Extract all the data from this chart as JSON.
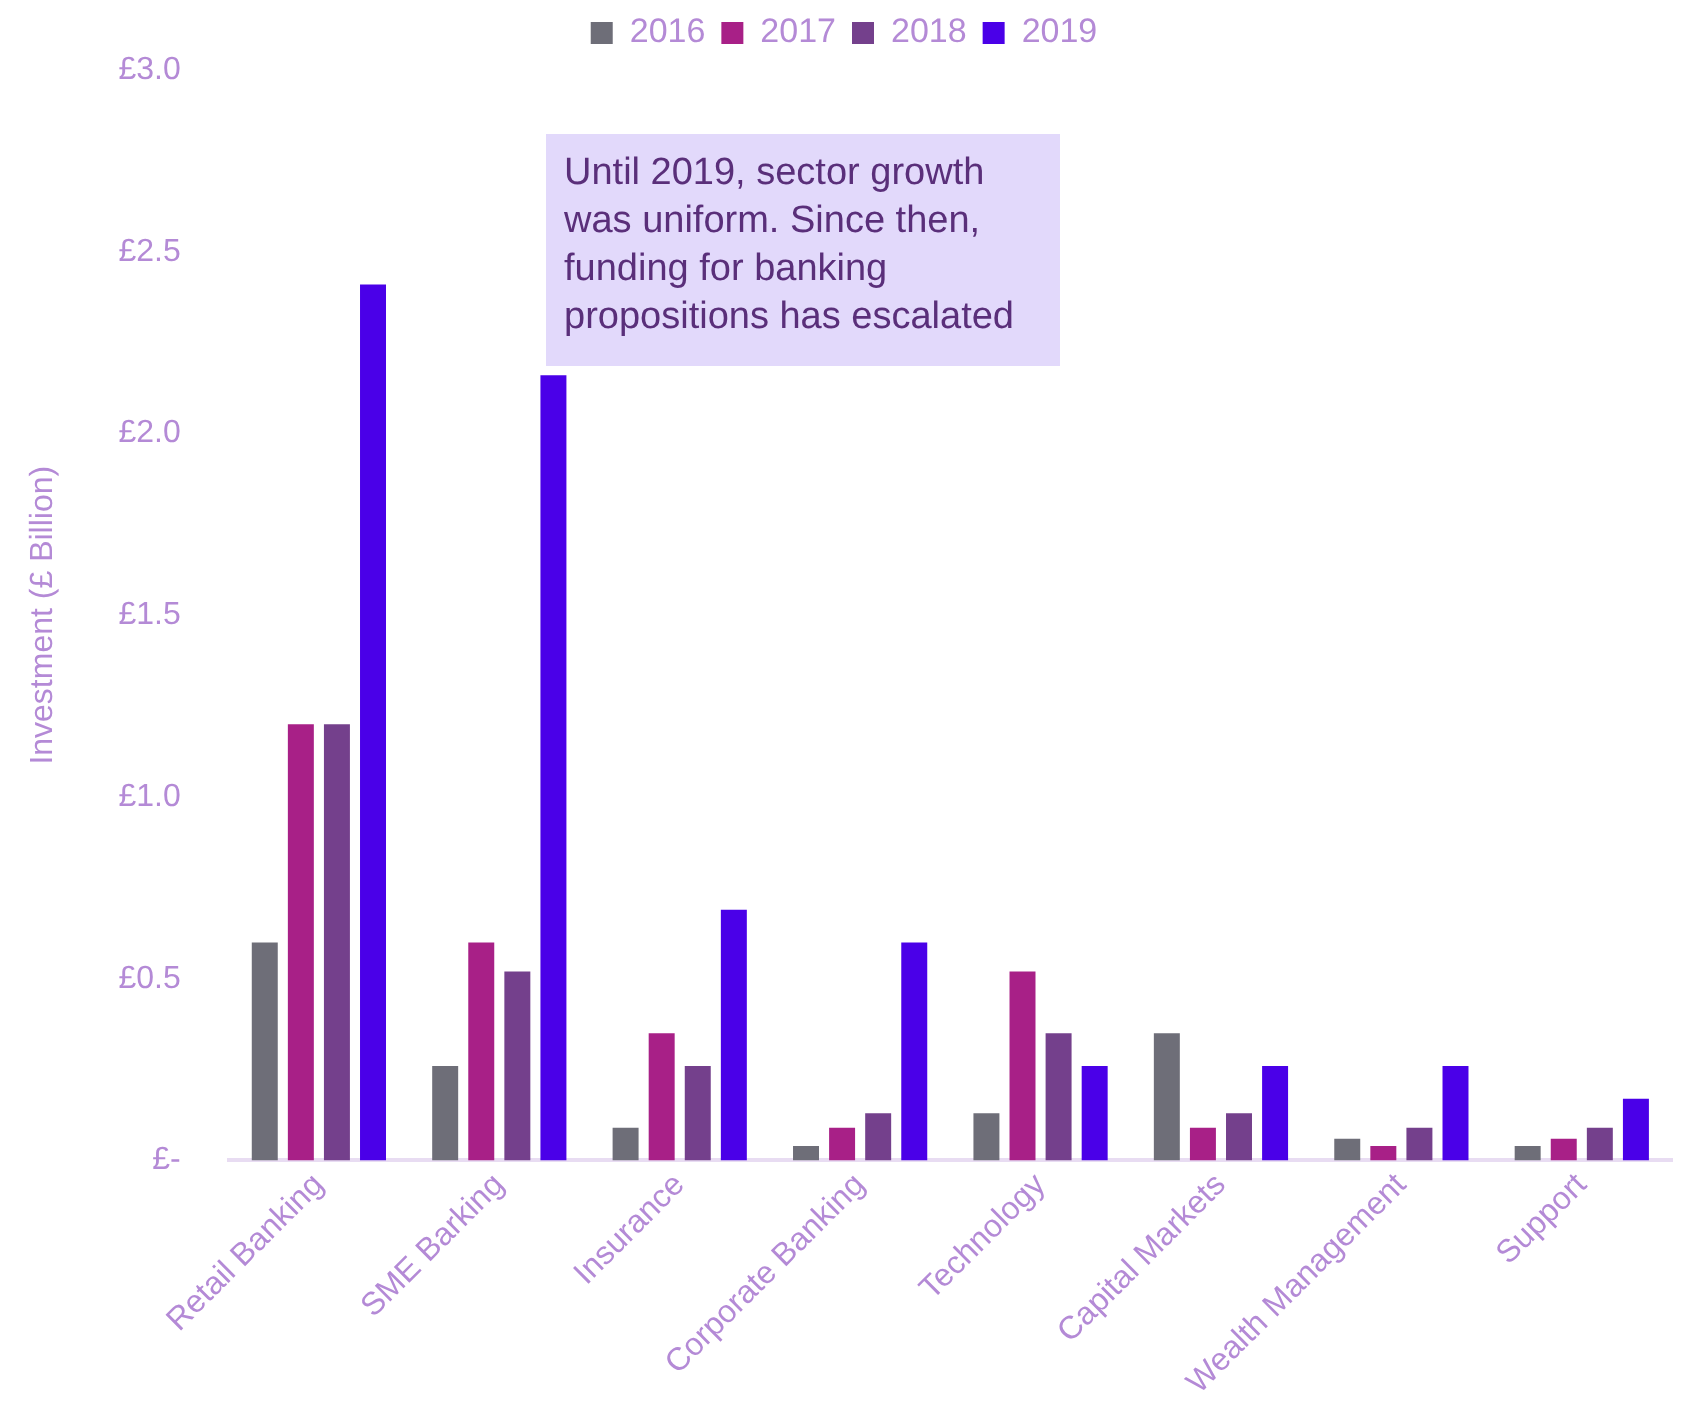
{
  "chart_data": {
    "type": "bar",
    "categories": [
      "Retail Banking",
      "SME Barking",
      "Insurance",
      "Corporate Banking",
      "Technology",
      "Capital Markets",
      "Wealth Management",
      "Support"
    ],
    "series": [
      {
        "name": "2016",
        "color": "#6e6e78",
        "values": [
          0.6,
          0.26,
          0.09,
          0.04,
          0.13,
          0.35,
          0.06,
          0.04
        ]
      },
      {
        "name": "2017",
        "color": "#a82087",
        "values": [
          1.2,
          0.6,
          0.35,
          0.09,
          0.52,
          0.09,
          0.04,
          0.06
        ]
      },
      {
        "name": "2018",
        "color": "#74408c",
        "values": [
          1.2,
          0.52,
          0.26,
          0.13,
          0.35,
          0.13,
          0.09,
          0.09
        ]
      },
      {
        "name": "2019",
        "color": "#4a00e8",
        "values": [
          2.41,
          2.16,
          0.69,
          0.6,
          0.26,
          0.26,
          0.26,
          0.17
        ]
      }
    ],
    "ylabel": "Investment (£ Billion)",
    "ylim": [
      0,
      3
    ],
    "yticks": [
      {
        "value": 0,
        "label": "£-"
      },
      {
        "value": 0.5,
        "label": "£0.5"
      },
      {
        "value": 1,
        "label": "£1.0"
      },
      {
        "value": 1.5,
        "label": "£1.5"
      },
      {
        "value": 2,
        "label": "£2.0"
      },
      {
        "value": 2.5,
        "label": "£2.5"
      },
      {
        "value": 3,
        "label": "£3.0"
      }
    ],
    "annotations": [
      "Until 2019, sector growth was uniform. Since then, funding for banking propositions has escalated"
    ],
    "legend": "top",
    "grid": false
  }
}
